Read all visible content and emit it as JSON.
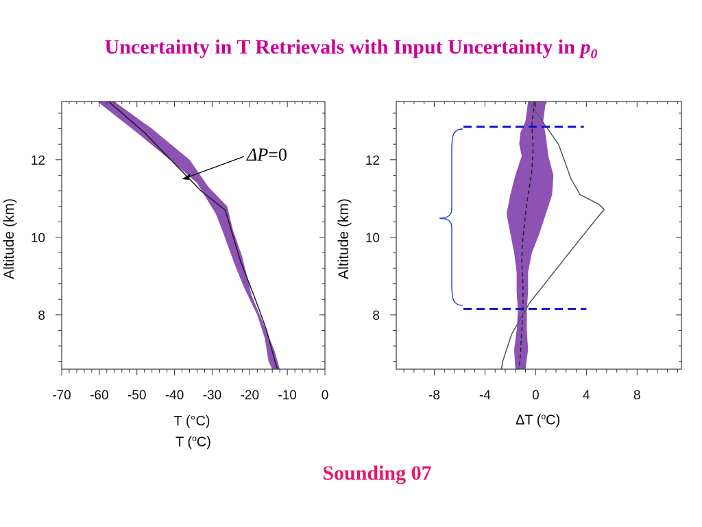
{
  "title": {
    "main": "Uncertainty in T Retrievals with Input Uncertainty in",
    "var": "p",
    "var_sub": "0"
  },
  "footer": "Sounding 07",
  "captions": {
    "left": {
      "pre": "T (",
      "sup": "o",
      "post": "C)"
    },
    "right": {
      "pre": "ΔT (",
      "sup": "o",
      "post": "C)"
    }
  },
  "colors": {
    "title": "#cc0099",
    "footer": "#e4196b",
    "band": "#8e52b5",
    "bracket": "#1e3ad6",
    "dashed": "#1010d0"
  },
  "chart_data": [
    {
      "type": "area",
      "ylabel": "Altitude (km)",
      "xlabel": "T (°C)",
      "xlim": [
        -70,
        0
      ],
      "ylim": [
        6.6,
        13.5
      ],
      "xticks": [
        -70,
        -60,
        -50,
        -40,
        -30,
        -20,
        -10,
        0
      ],
      "xtick_labels": [
        "-70",
        "-60",
        "-50",
        "-40",
        "-30",
        "-20",
        "-10",
        "0"
      ],
      "yticks": [
        8,
        10,
        12
      ],
      "ytick_labels": [
        "8",
        "10",
        "12"
      ],
      "annotation": {
        "text_italic": "ΔP",
        "text": "=0",
        "points_to": {
          "x": -38.0,
          "y": 11.5
        }
      },
      "series": [
        {
          "kind": "band",
          "left": [
            [
              -60.5,
              13.5
            ],
            [
              -50,
              12.7
            ],
            [
              -40,
              11.9
            ],
            [
              -34,
              11.4
            ],
            [
              -29,
              10.6
            ],
            [
              -27,
              10.1
            ],
            [
              -24,
              9.3
            ],
            [
              -21.5,
              8.7
            ],
            [
              -18,
              8.0
            ],
            [
              -16,
              7.4
            ],
            [
              -15,
              6.8
            ],
            [
              -14,
              6.6
            ]
          ],
          "right": [
            [
              -56,
              13.5
            ],
            [
              -46,
              12.8
            ],
            [
              -36,
              12.0
            ],
            [
              -31,
              11.3
            ],
            [
              -26,
              10.8
            ],
            [
              -24.5,
              10.2
            ],
            [
              -22,
              9.5
            ],
            [
              -19.5,
              8.5
            ],
            [
              -16.5,
              7.8
            ],
            [
              -13.5,
              7.1
            ],
            [
              -12,
              6.6
            ]
          ]
        },
        {
          "kind": "line",
          "points": [
            [
              -57.5,
              13.5
            ],
            [
              -48,
              12.7
            ],
            [
              -39,
              11.8
            ],
            [
              -33,
              11.2
            ],
            [
              -26.5,
              10.7
            ],
            [
              -22.5,
              9.4
            ],
            [
              -18.5,
              8.4
            ],
            [
              -15.5,
              7.6
            ],
            [
              -13,
              6.7
            ],
            [
              -12.5,
              6.6
            ]
          ]
        }
      ]
    },
    {
      "type": "area",
      "ylabel": "Altitude (km)",
      "xlabel": "ΔT (°C)",
      "xlim": [
        -11,
        11.5
      ],
      "ylim": [
        6.6,
        13.5
      ],
      "xticks": [
        -8,
        -4,
        0,
        4,
        8
      ],
      "xtick_labels": [
        "-8",
        "-4",
        "0",
        "4",
        "8"
      ],
      "yticks": [
        8,
        10,
        12
      ],
      "ytick_labels": [
        "8",
        "10",
        "12"
      ],
      "series": [
        {
          "kind": "band",
          "left": [
            [
              -0.6,
              13.5
            ],
            [
              -0.8,
              13.0
            ],
            [
              -1.2,
              12.7
            ],
            [
              -1.3,
              12.4
            ],
            [
              -1.1,
              12.1
            ],
            [
              -1.6,
              11.6
            ],
            [
              -2.0,
              11.1
            ],
            [
              -2.3,
              10.6
            ],
            [
              -2.0,
              10.1
            ],
            [
              -1.7,
              9.6
            ],
            [
              -1.5,
              9.1
            ],
            [
              -1.5,
              8.6
            ],
            [
              -1.4,
              8.1
            ],
            [
              -1.5,
              7.6
            ],
            [
              -1.7,
              7.1
            ],
            [
              -1.6,
              6.6
            ]
          ],
          "right": [
            [
              0.8,
              13.5
            ],
            [
              0.6,
              13.0
            ],
            [
              0.8,
              12.6
            ],
            [
              1.0,
              12.1
            ],
            [
              1.4,
              11.6
            ],
            [
              1.3,
              11.1
            ],
            [
              0.8,
              10.6
            ],
            [
              0.3,
              10.1
            ],
            [
              -0.3,
              9.6
            ],
            [
              -0.6,
              9.1
            ],
            [
              -0.6,
              8.6
            ],
            [
              -0.7,
              8.1
            ],
            [
              -0.7,
              7.6
            ],
            [
              -0.6,
              7.1
            ],
            [
              -0.8,
              6.6
            ]
          ]
        },
        {
          "kind": "dashed",
          "points": [
            [
              -0.1,
              13.5
            ],
            [
              -0.3,
              12.9
            ],
            [
              -0.2,
              12.3
            ],
            [
              -0.3,
              11.7
            ],
            [
              -0.6,
              11.1
            ],
            [
              -0.8,
              10.6
            ],
            [
              -1.0,
              10.0
            ],
            [
              -1.1,
              9.4
            ],
            [
              -1.0,
              8.8
            ],
            [
              -1.0,
              8.2
            ],
            [
              -1.1,
              7.6
            ],
            [
              -1.2,
              7.0
            ],
            [
              -1.3,
              6.6
            ]
          ]
        },
        {
          "kind": "line",
          "points": [
            [
              -0.5,
              13.5
            ],
            [
              0.5,
              13.0
            ],
            [
              1.8,
              12.4
            ],
            [
              2.8,
              11.5
            ],
            [
              3.5,
              11.1
            ],
            [
              5.0,
              10.85
            ],
            [
              5.4,
              10.72
            ],
            [
              4.6,
              10.4
            ],
            [
              2.4,
              9.5
            ],
            [
              -0.5,
              8.3
            ],
            [
              -1.9,
              7.5
            ],
            [
              -2.6,
              6.8
            ],
            [
              -2.7,
              6.6
            ]
          ]
        },
        {
          "kind": "hline-dashed",
          "y": 12.85,
          "x": [
            -5.7,
            3.8
          ]
        },
        {
          "kind": "hline-dashed",
          "y": 8.15,
          "x": [
            -5.7,
            4.0
          ]
        }
      ]
    }
  ]
}
